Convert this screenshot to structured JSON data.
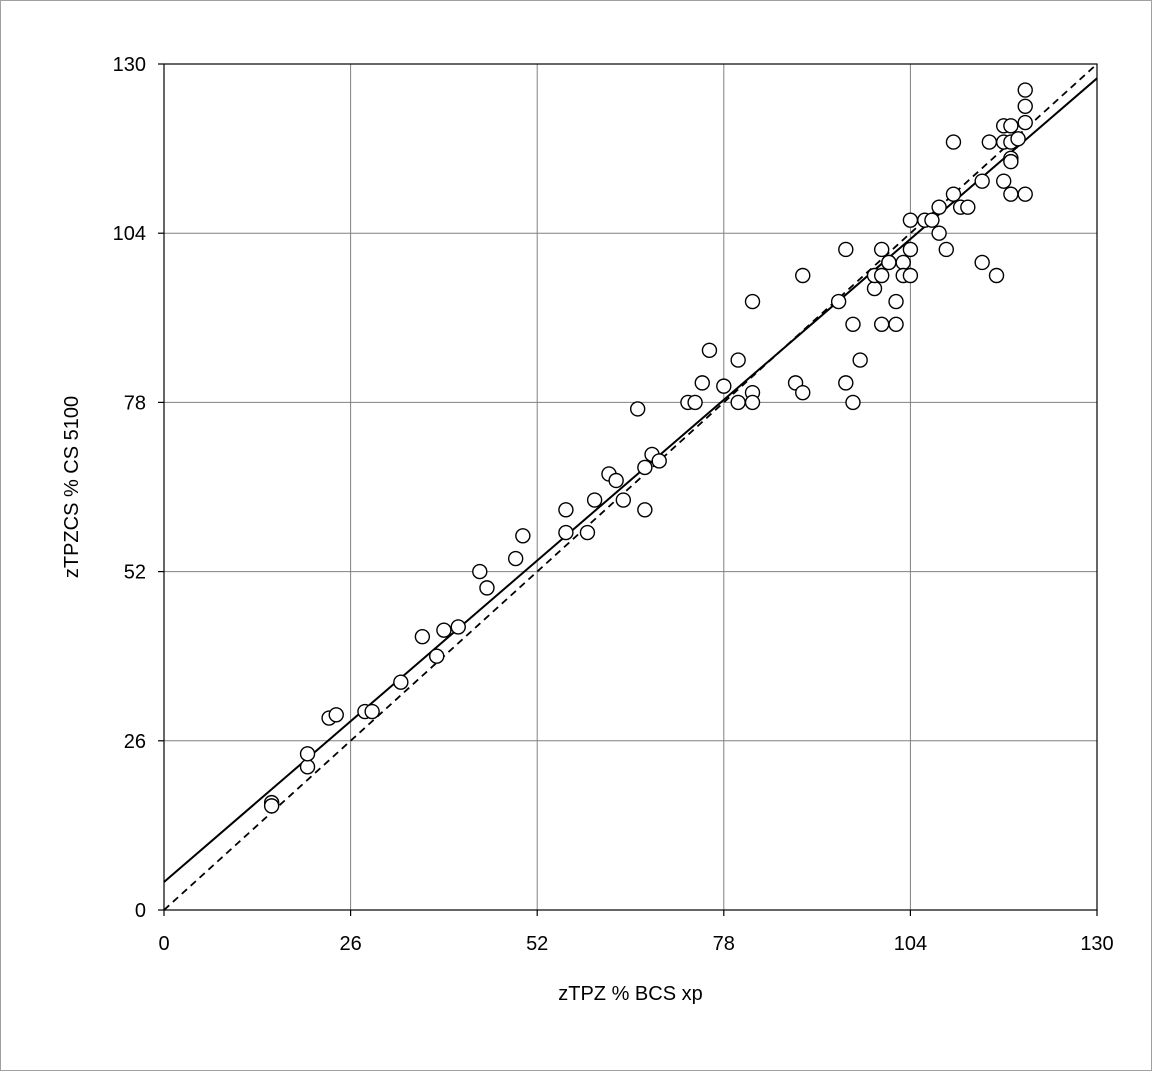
{
  "chart_data": {
    "type": "scatter",
    "title": "",
    "xlabel": "zTPZ % BCS xp",
    "ylabel": "zTPZCS % CS 5100",
    "xlim": [
      0,
      130
    ],
    "ylim": [
      0,
      130
    ],
    "xticks": [
      0,
      26,
      52,
      78,
      104,
      130
    ],
    "yticks": [
      0,
      26,
      52,
      78,
      104,
      130
    ],
    "grid": true,
    "legend": "none",
    "colors": {
      "axis": "#000000",
      "grid": "#808080",
      "marker_fill": "#ffffff",
      "marker_stroke": "#000000"
    },
    "lines": [
      {
        "style": "solid",
        "slope": 0.95,
        "intercept": 4.3
      },
      {
        "style": "dashed",
        "slope": 1.0,
        "intercept": 0
      }
    ],
    "series": [
      {
        "marker": "open-circle",
        "points": [
          [
            15,
            16.5
          ],
          [
            15,
            16
          ],
          [
            20,
            22
          ],
          [
            20,
            24
          ],
          [
            23,
            29.5
          ],
          [
            24,
            30
          ],
          [
            28,
            30.5
          ],
          [
            29,
            30.5
          ],
          [
            33,
            35
          ],
          [
            36,
            42
          ],
          [
            38,
            39
          ],
          [
            39,
            43
          ],
          [
            41,
            43.5
          ],
          [
            44,
            52
          ],
          [
            45,
            49.5
          ],
          [
            49,
            54
          ],
          [
            50,
            57.5
          ],
          [
            56,
            58
          ],
          [
            56,
            61.5
          ],
          [
            59,
            58
          ],
          [
            60,
            63
          ],
          [
            62,
            67
          ],
          [
            63,
            66
          ],
          [
            64,
            63
          ],
          [
            66,
            77
          ],
          [
            67,
            61.5
          ],
          [
            67,
            68
          ],
          [
            68,
            70
          ],
          [
            69,
            69
          ],
          [
            73,
            78
          ],
          [
            74,
            78
          ],
          [
            75,
            81
          ],
          [
            76,
            86
          ],
          [
            78,
            80.5
          ],
          [
            80,
            78
          ],
          [
            80,
            84.5
          ],
          [
            82,
            79.5
          ],
          [
            82,
            78
          ],
          [
            82,
            93.5
          ],
          [
            88,
            81
          ],
          [
            89,
            79.5
          ],
          [
            89,
            97.5
          ],
          [
            94,
            93.5
          ],
          [
            95,
            81
          ],
          [
            95,
            101.5
          ],
          [
            96,
            90
          ],
          [
            96,
            78
          ],
          [
            97,
            84.5
          ],
          [
            99,
            95.5
          ],
          [
            99,
            97.5
          ],
          [
            100,
            101.5
          ],
          [
            100,
            97.5
          ],
          [
            100,
            90
          ],
          [
            101,
            99.5
          ],
          [
            101,
            99.5
          ],
          [
            102,
            93.5
          ],
          [
            102,
            90
          ],
          [
            103,
            99.5
          ],
          [
            103,
            97.5
          ],
          [
            104,
            101.5
          ],
          [
            104,
            97.5
          ],
          [
            104,
            106
          ],
          [
            106,
            106
          ],
          [
            107,
            106
          ],
          [
            108,
            108
          ],
          [
            108,
            104
          ],
          [
            109,
            101.5
          ],
          [
            110,
            110
          ],
          [
            110,
            118
          ],
          [
            111,
            108
          ],
          [
            112,
            108
          ],
          [
            114,
            112
          ],
          [
            114,
            99.5
          ],
          [
            115,
            118
          ],
          [
            116,
            97.5
          ],
          [
            117,
            118
          ],
          [
            117,
            120.5
          ],
          [
            117,
            112
          ],
          [
            118,
            118
          ],
          [
            118,
            120.5
          ],
          [
            118,
            115.5
          ],
          [
            118,
            115
          ],
          [
            118,
            110
          ],
          [
            119,
            118.5
          ],
          [
            120,
            121
          ],
          [
            120,
            123.5
          ],
          [
            120,
            126
          ],
          [
            120,
            110
          ]
        ]
      }
    ]
  }
}
